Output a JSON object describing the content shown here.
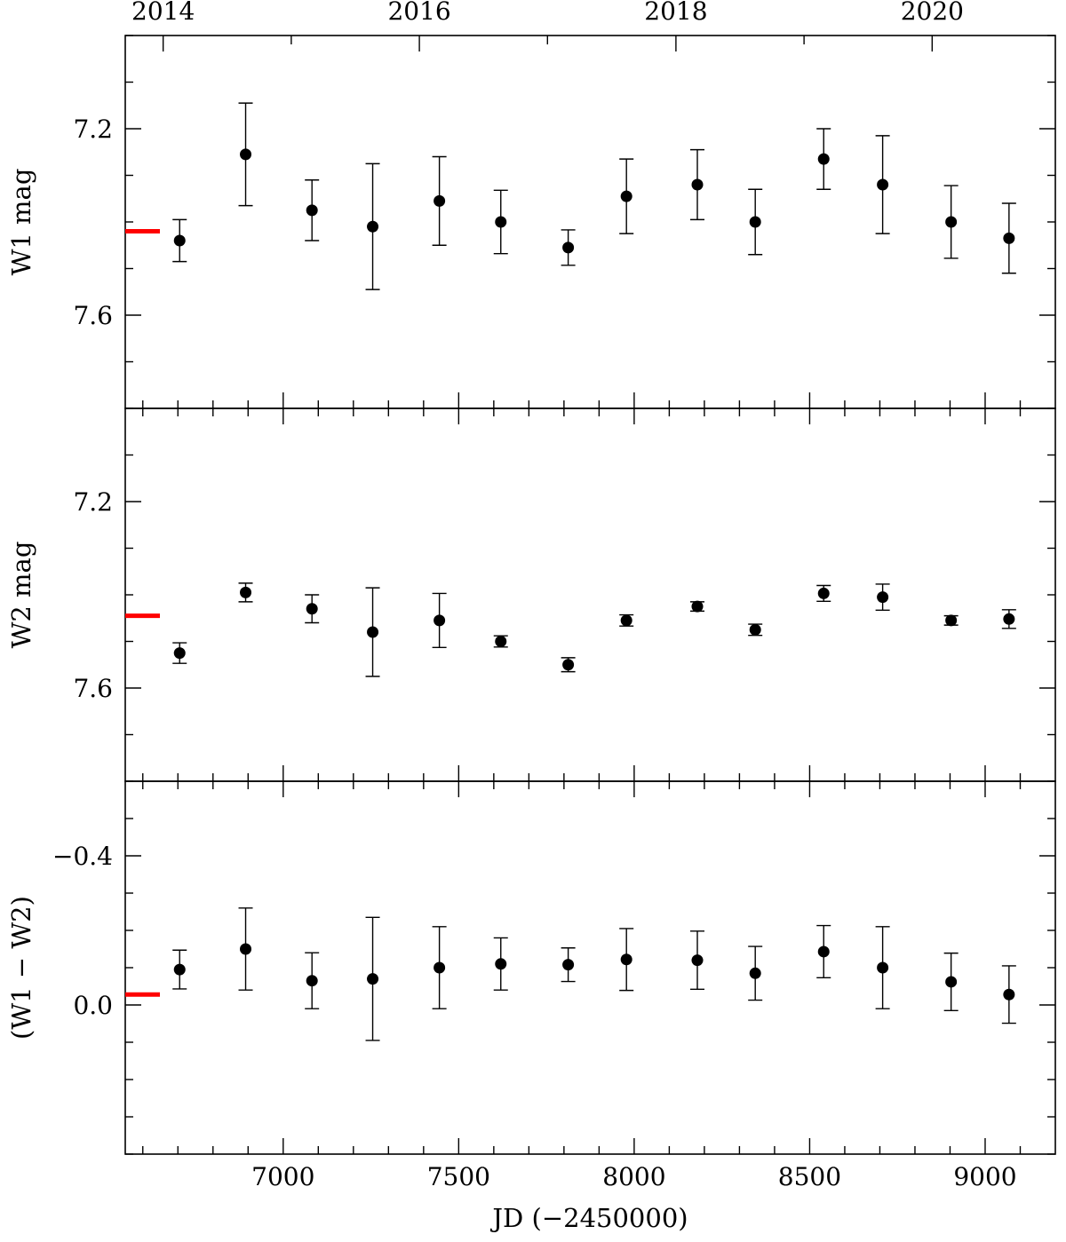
{
  "chart_data": [
    {
      "type": "scatter",
      "panel": "w1",
      "ylabel": "W1 mag",
      "ylim": [
        7.0,
        7.8
      ],
      "y_inverted": true,
      "yticks": [
        "7.2",
        "7.6"
      ],
      "yticks_values": [
        7.2,
        7.6
      ],
      "reference_marker": {
        "y": 7.42,
        "color": "#ff0000"
      },
      "series": [
        {
          "points": [
            {
              "x": 6705,
              "y": 7.44,
              "err": 0.045
            },
            {
              "x": 6893,
              "y": 7.255,
              "err": 0.11
            },
            {
              "x": 7082,
              "y": 7.375,
              "err": 0.065
            },
            {
              "x": 7255,
              "y": 7.41,
              "err": 0.135
            },
            {
              "x": 7445,
              "y": 7.355,
              "err": 0.095
            },
            {
              "x": 7620,
              "y": 7.4,
              "err": 0.068
            },
            {
              "x": 7812,
              "y": 7.455,
              "err": 0.038
            },
            {
              "x": 7978,
              "y": 7.345,
              "err": 0.08
            },
            {
              "x": 8180,
              "y": 7.32,
              "err": 0.075
            },
            {
              "x": 8345,
              "y": 7.4,
              "err": 0.07
            },
            {
              "x": 8540,
              "y": 7.265,
              "err": 0.065
            },
            {
              "x": 8708,
              "y": 7.32,
              "err": 0.105
            },
            {
              "x": 8903,
              "y": 7.4,
              "err": 0.078
            },
            {
              "x": 9068,
              "y": 7.435,
              "err": 0.075
            }
          ]
        }
      ]
    },
    {
      "type": "scatter",
      "panel": "w2",
      "ylabel": "W2 mag",
      "ylim": [
        7.0,
        7.8
      ],
      "y_inverted": true,
      "yticks": [
        "7.2",
        "7.6"
      ],
      "yticks_values": [
        7.2,
        7.6
      ],
      "reference_marker": {
        "y": 7.445,
        "color": "#ff0000"
      },
      "series": [
        {
          "points": [
            {
              "x": 6705,
              "y": 7.525,
              "err": 0.022
            },
            {
              "x": 6893,
              "y": 7.395,
              "err": 0.02
            },
            {
              "x": 7082,
              "y": 7.43,
              "err": 0.03
            },
            {
              "x": 7255,
              "y": 7.48,
              "err": 0.095
            },
            {
              "x": 7445,
              "y": 7.455,
              "err": 0.058
            },
            {
              "x": 7620,
              "y": 7.5,
              "err": 0.012
            },
            {
              "x": 7812,
              "y": 7.55,
              "err": 0.015
            },
            {
              "x": 7978,
              "y": 7.455,
              "err": 0.012
            },
            {
              "x": 8180,
              "y": 7.425,
              "err": 0.01
            },
            {
              "x": 8345,
              "y": 7.475,
              "err": 0.012
            },
            {
              "x": 8540,
              "y": 7.397,
              "err": 0.017
            },
            {
              "x": 8708,
              "y": 7.405,
              "err": 0.028
            },
            {
              "x": 8903,
              "y": 7.455,
              "err": 0.01
            },
            {
              "x": 9068,
              "y": 7.452,
              "err": 0.02
            }
          ]
        }
      ]
    },
    {
      "type": "scatter",
      "panel": "color",
      "ylabel": "(W1 − W2)",
      "ylim": [
        -0.6,
        0.4
      ],
      "y_inverted": true,
      "yticks": [
        "−0.4",
        "0.0"
      ],
      "yticks_values": [
        -0.4,
        0.0
      ],
      "reference_marker": {
        "y": -0.028,
        "color": "#ff0000"
      },
      "series": [
        {
          "points": [
            {
              "x": 6705,
              "y": -0.095,
              "err": 0.052
            },
            {
              "x": 6893,
              "y": -0.15,
              "err": 0.11
            },
            {
              "x": 7082,
              "y": -0.065,
              "err": 0.075
            },
            {
              "x": 7255,
              "y": -0.07,
              "err": 0.165
            },
            {
              "x": 7445,
              "y": -0.1,
              "err": 0.11
            },
            {
              "x": 7620,
              "y": -0.11,
              "err": 0.07
            },
            {
              "x": 7812,
              "y": -0.108,
              "err": 0.045
            },
            {
              "x": 7978,
              "y": -0.122,
              "err": 0.083
            },
            {
              "x": 8180,
              "y": -0.12,
              "err": 0.078
            },
            {
              "x": 8345,
              "y": -0.085,
              "err": 0.072
            },
            {
              "x": 8540,
              "y": -0.143,
              "err": 0.07
            },
            {
              "x": 8708,
              "y": -0.1,
              "err": 0.11
            },
            {
              "x": 8903,
              "y": -0.062,
              "err": 0.077
            },
            {
              "x": 9068,
              "y": -0.028,
              "err": 0.077
            }
          ]
        }
      ]
    }
  ],
  "x_axis": {
    "label": "JD (−2450000)",
    "xlim": [
      6550,
      9200
    ],
    "ticks": [
      "7000",
      "7500",
      "8000",
      "8500",
      "9000"
    ],
    "tick_values": [
      7000,
      7500,
      8000,
      8500,
      9000
    ]
  },
  "top_axis": {
    "ticks": [
      "2014",
      "2016",
      "2018",
      "2020"
    ],
    "tick_values": [
      6658,
      7388,
      8119,
      8849
    ]
  },
  "colors": {
    "points": "#000000",
    "reference": "#ff0000"
  }
}
